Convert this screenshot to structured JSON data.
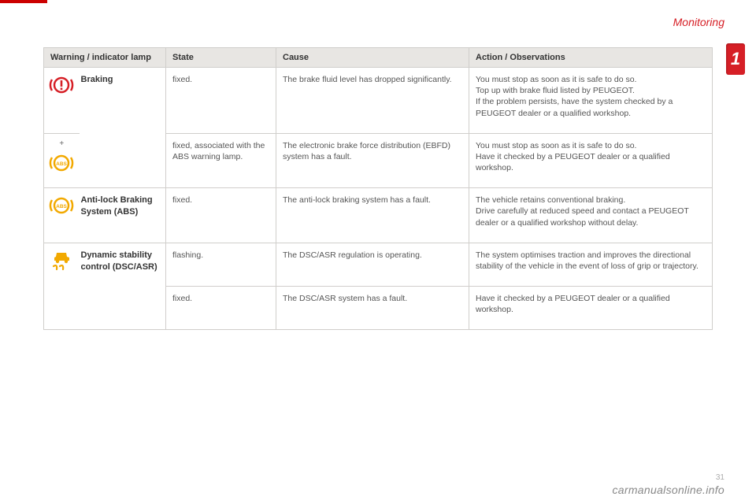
{
  "page": {
    "section_title": "Monitoring",
    "tab_number": "1",
    "footer_url": "carmanualsonline.info",
    "page_number": "31"
  },
  "colors": {
    "header_bg": "#e8e6e3",
    "border": "#d0cecb",
    "brand_red": "#d61f26",
    "icon_red": "#d61f26",
    "icon_amber": "#f2a900",
    "text_body": "#555555",
    "text_header": "#333333"
  },
  "table": {
    "headers": {
      "col1": "Warning / indicator lamp",
      "col2": "State",
      "col3": "Cause",
      "col4": "Action / Observations"
    },
    "rows": [
      {
        "icon": "brake-circle",
        "icon_color": "#d61f26",
        "name": "Braking",
        "state": "fixed.",
        "cause": "The brake fluid level has dropped significantly.",
        "action": "You must stop as soon as it is safe to do so.\nTop up with brake fluid listed by PEUGEOT.\nIf the problem persists, have the system checked by a PEUGEOT dealer or a qualified workshop."
      },
      {
        "icon": "abs-circle",
        "icon_color": "#f2a900",
        "plus": "+",
        "name": "",
        "state": "fixed, associated with the ABS warning lamp.",
        "cause": "The electronic brake force distribution (EBFD) system has a fault.",
        "action": "You must stop as soon as it is safe to do so.\nHave it checked by a PEUGEOT dealer or a qualified workshop."
      },
      {
        "icon": "abs-circle",
        "icon_color": "#f2a900",
        "name": "Anti-lock Braking System (ABS)",
        "state": "fixed.",
        "cause": "The anti-lock braking system has a fault.",
        "action": "The vehicle retains conventional braking.\nDrive carefully at reduced speed and contact a PEUGEOT dealer or a qualified workshop without delay."
      },
      {
        "icon": "dsc-car",
        "icon_color": "#f2a900",
        "name": "Dynamic stability control (DSC/ASR)",
        "state": "flashing.",
        "cause": "The DSC/ASR regulation is operating.",
        "action": "The system optimises traction and improves the directional stability of the vehicle in the event of loss of grip or trajectory."
      },
      {
        "icon": "",
        "icon_color": "",
        "name": "",
        "state": "fixed.",
        "cause": "The DSC/ASR system has a fault.",
        "action": "Have it checked by a PEUGEOT dealer or a qualified workshop."
      }
    ]
  }
}
